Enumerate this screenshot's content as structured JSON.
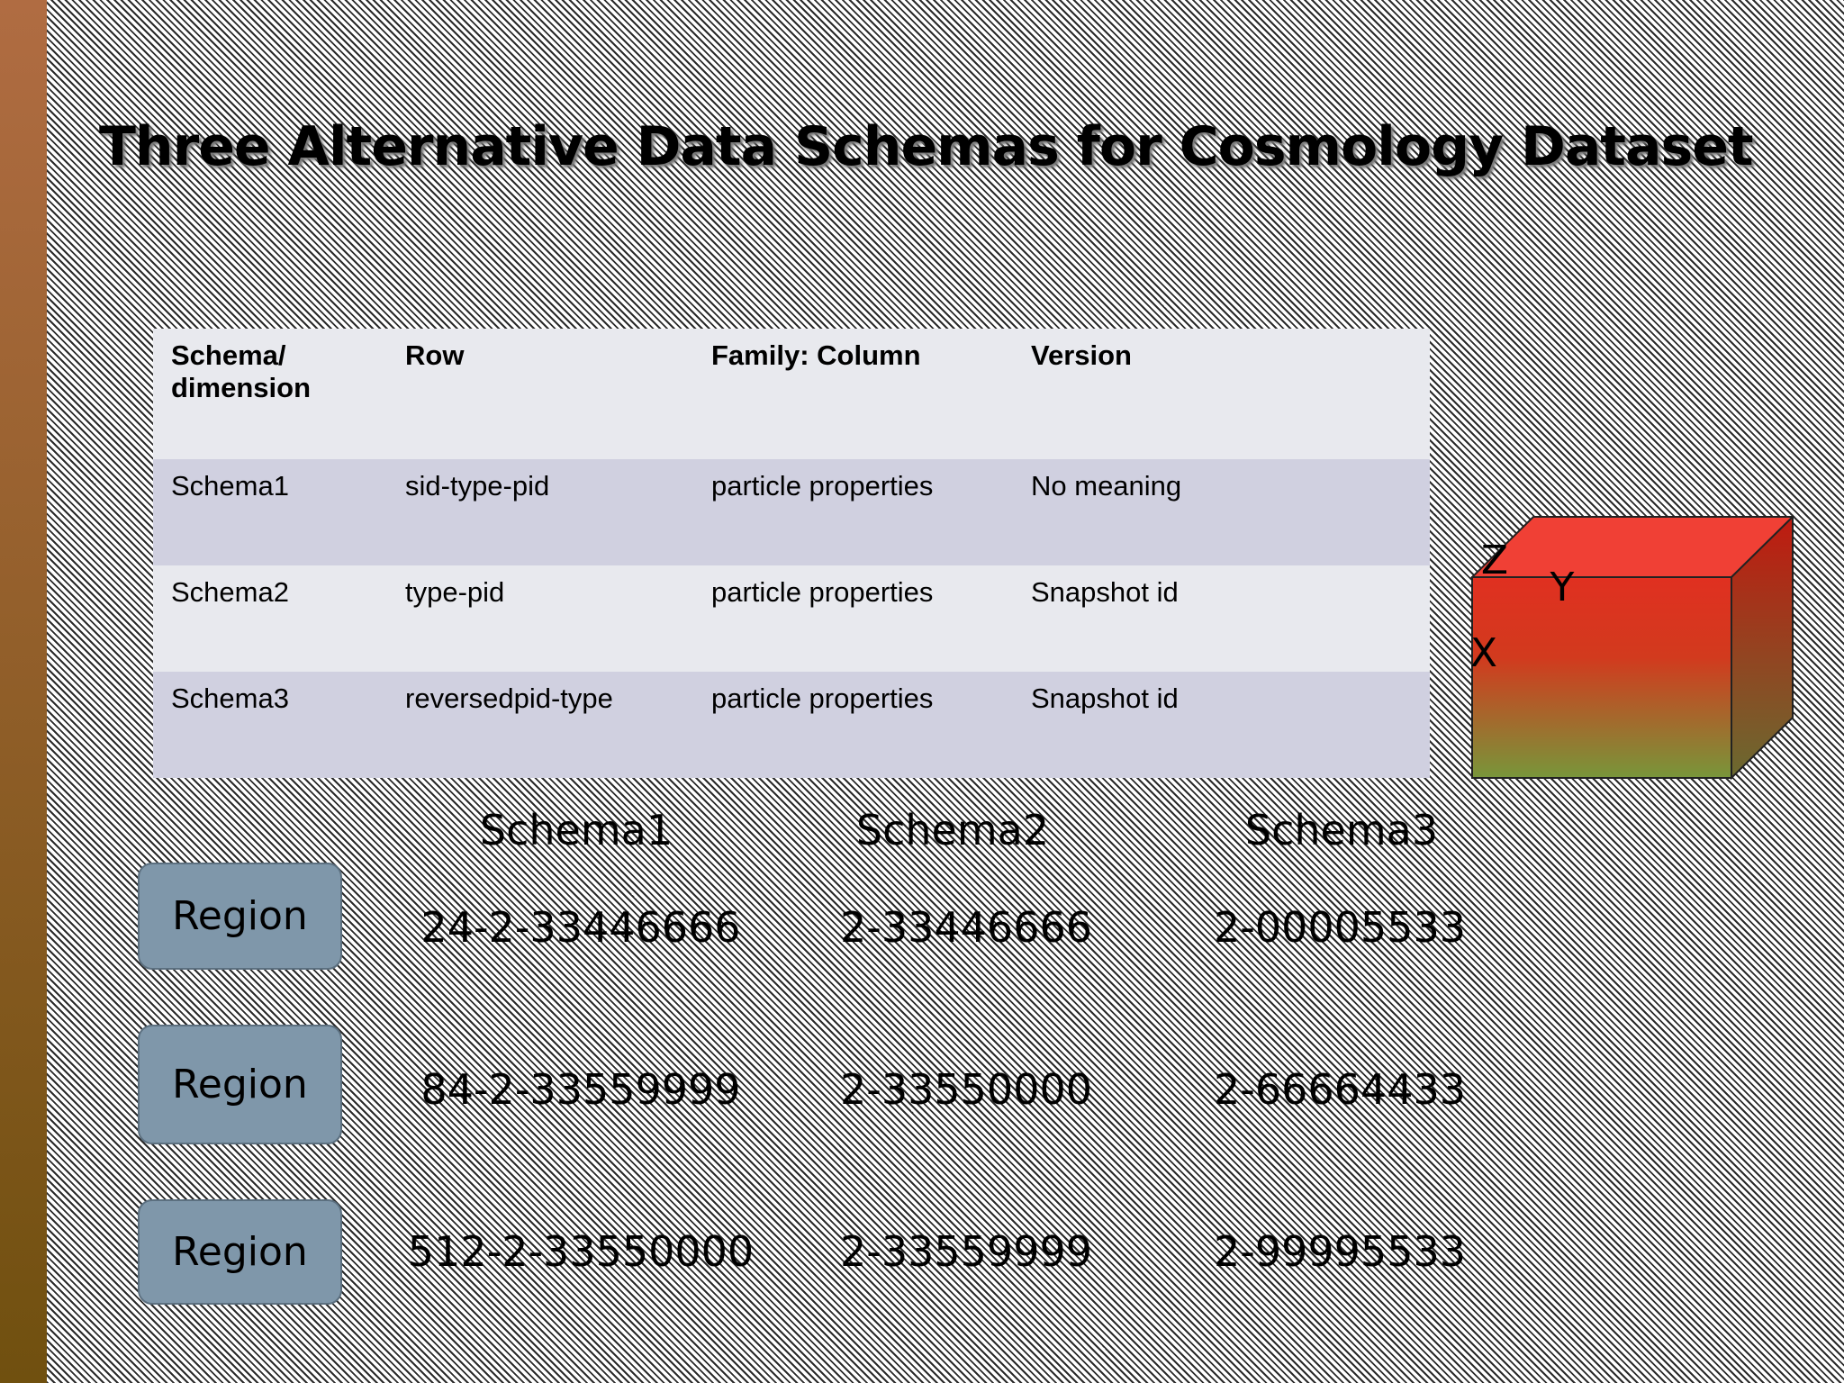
{
  "title": "Three Alternative Data Schemas for Cosmology Dataset",
  "table": {
    "header": [
      "Schema/ dimension",
      "Row",
      "Family: Column",
      "Version"
    ],
    "rows": [
      [
        "Schema1",
        "sid-type-pid",
        "particle properties",
        "No meaning"
      ],
      [
        "Schema2",
        "type-pid",
        "particle properties",
        "Snapshot id"
      ],
      [
        "Schema3",
        "reversedpid-type",
        "particle properties",
        "Snapshot id"
      ]
    ]
  },
  "cube": {
    "labels": [
      "Z",
      "Y",
      "X"
    ]
  },
  "regions": {
    "columns": [
      "Schema1",
      "Schema2",
      "Schema3"
    ],
    "rows": [
      {
        "label": "Region",
        "keys": [
          "24-2-33446666",
          "2-33446666",
          "2-00005533"
        ]
      },
      {
        "label": "Region",
        "keys": [
          "84-2-33559999",
          "2-33550000",
          "2-66664433"
        ]
      },
      {
        "label": "Region",
        "keys": [
          "512-2-33550000",
          "2-33559999",
          "2-99995533"
        ]
      }
    ]
  }
}
